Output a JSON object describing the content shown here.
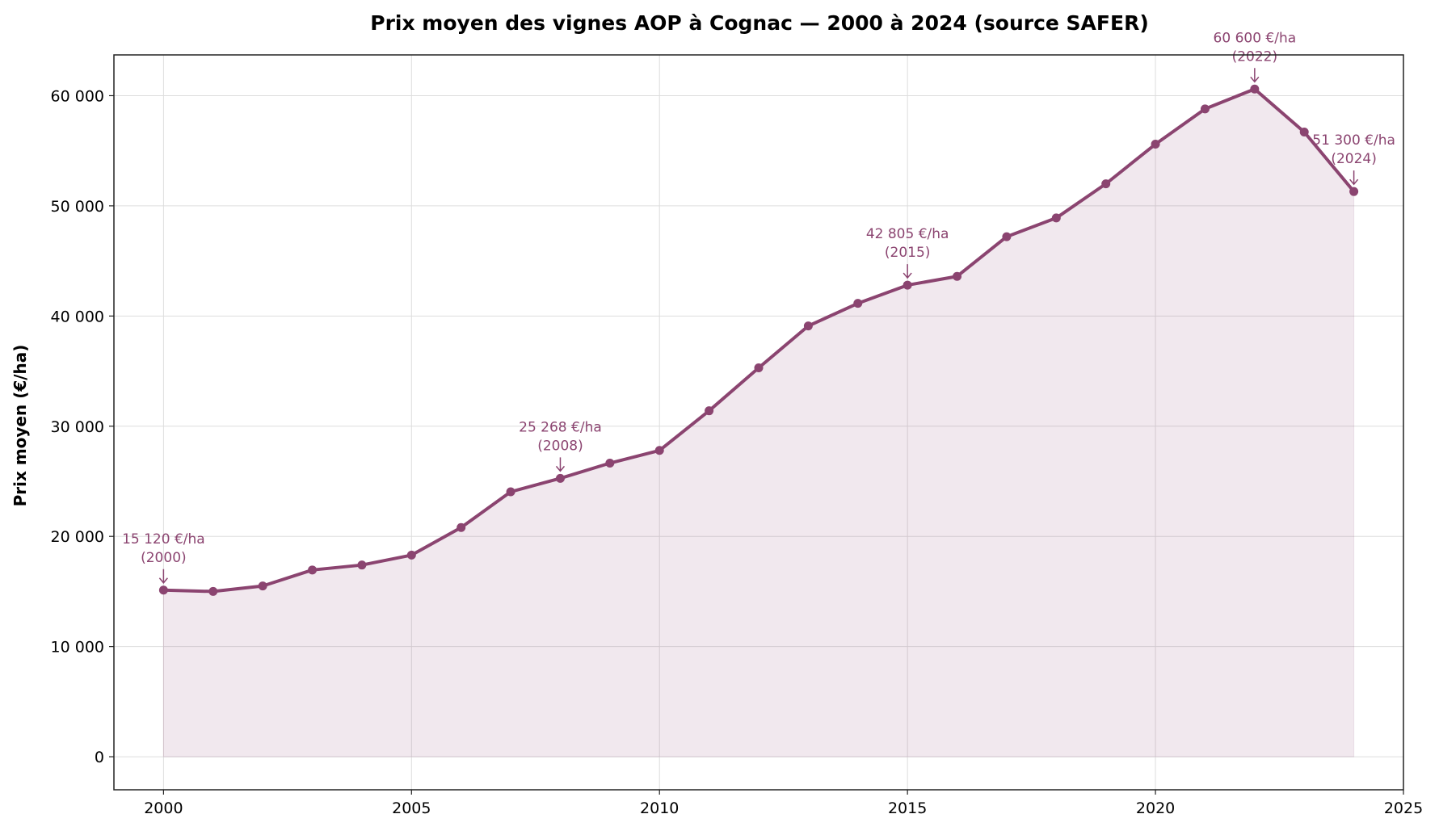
{
  "chart_data": {
    "type": "line",
    "title": "Prix moyen des vignes AOP à Cognac — 2000 à 2024 (source SAFER)",
    "xlabel": "",
    "ylabel": "Prix moyen (€/ha)",
    "xlim": [
      1999,
      2025
    ],
    "ylim": [
      -3000,
      63700
    ],
    "grid": true,
    "fill_under": true,
    "color": "#8B4470",
    "x_ticks": [
      2000,
      2005,
      2010,
      2015,
      2020,
      2025
    ],
    "x_tick_labels": [
      "2000",
      "2005",
      "2010",
      "2015",
      "2020",
      "2025"
    ],
    "y_ticks": [
      0,
      10000,
      20000,
      30000,
      40000,
      50000,
      60000
    ],
    "y_tick_labels": [
      "0",
      "10 000",
      "20 000",
      "30 000",
      "40 000",
      "50 000",
      "60 000"
    ],
    "x": [
      2000,
      2001,
      2002,
      2003,
      2004,
      2005,
      2006,
      2007,
      2008,
      2009,
      2010,
      2011,
      2012,
      2013,
      2014,
      2015,
      2016,
      2017,
      2018,
      2019,
      2020,
      2021,
      2022,
      2023,
      2024
    ],
    "y": [
      15120,
      15000,
      15500,
      16950,
      17400,
      18300,
      20800,
      24050,
      25268,
      26650,
      27800,
      31400,
      35300,
      39100,
      41150,
      42805,
      43600,
      47200,
      48900,
      52000,
      55600,
      58800,
      60600,
      56700,
      51300
    ],
    "annotations": [
      {
        "x": 2000,
        "y": 15120,
        "label": "15 120 €/ha",
        "sub": "(2000)"
      },
      {
        "x": 2008,
        "y": 25268,
        "label": "25 268 €/ha",
        "sub": "(2008)"
      },
      {
        "x": 2015,
        "y": 42805,
        "label": "42 805 €/ha",
        "sub": "(2015)"
      },
      {
        "x": 2022,
        "y": 60600,
        "label": "60 600 €/ha",
        "sub": "(2022)"
      },
      {
        "x": 2024,
        "y": 51300,
        "label": "51 300 €/ha",
        "sub": "(2024)"
      }
    ]
  }
}
